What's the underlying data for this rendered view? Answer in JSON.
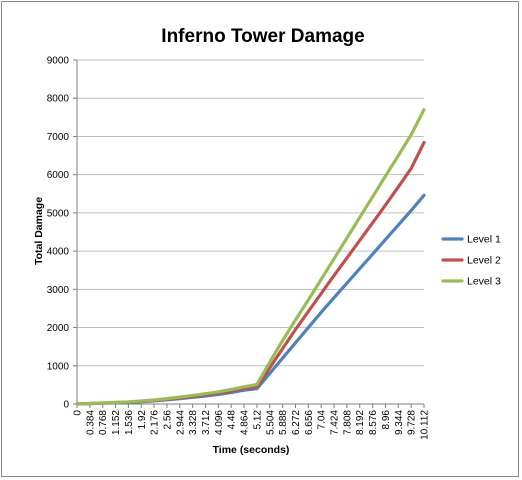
{
  "chart_data": {
    "type": "line",
    "title": "Inferno Tower Damage",
    "xlabel": "Time (seconds)",
    "ylabel": "Total Damage",
    "ylim": [
      0,
      9000
    ],
    "yticks": [
      "0",
      "1000",
      "2000",
      "3000",
      "4000",
      "5000",
      "6000",
      "7000",
      "8000",
      "9000"
    ],
    "categories": [
      "0",
      "0.384",
      "0.768",
      "1.152",
      "1.536",
      "1.92",
      "2.176",
      "2.56",
      "2.944",
      "3.328",
      "3.712",
      "4.096",
      "4.48",
      "4.864",
      "5.12",
      "5.504",
      "5.888",
      "6.272",
      "6.656",
      "7.04",
      "7.424",
      "7.808",
      "8.192",
      "8.576",
      "8.96",
      "9.344",
      "9.728",
      "10.112"
    ],
    "grid": "horizontal",
    "legend_position": "right",
    "series": [
      {
        "name": "Level 1",
        "color": "#4f81bd",
        "values": [
          0,
          10,
          20,
          30,
          40,
          60,
          80,
          110,
          140,
          175,
          210,
          250,
          300,
          360,
          400,
          800,
          1200,
          1600,
          2000,
          2400,
          2780,
          3160,
          3540,
          3920,
          4300,
          4680,
          5060,
          5460
        ]
      },
      {
        "name": "Level 2",
        "color": "#c0504d",
        "values": [
          0,
          12,
          24,
          36,
          48,
          68,
          92,
          125,
          160,
          200,
          240,
          285,
          340,
          410,
          450,
          950,
          1450,
          1950,
          2420,
          2890,
          3360,
          3820,
          4280,
          4740,
          5200,
          5680,
          6160,
          6840
        ]
      },
      {
        "name": "Level 3",
        "color": "#9bbb59",
        "values": [
          0,
          14,
          28,
          42,
          56,
          78,
          104,
          140,
          180,
          225,
          270,
          320,
          380,
          450,
          510,
          1100,
          1660,
          2200,
          2720,
          3260,
          3800,
          4340,
          4880,
          5420,
          5960,
          6500,
          7040,
          7700
        ]
      }
    ]
  }
}
